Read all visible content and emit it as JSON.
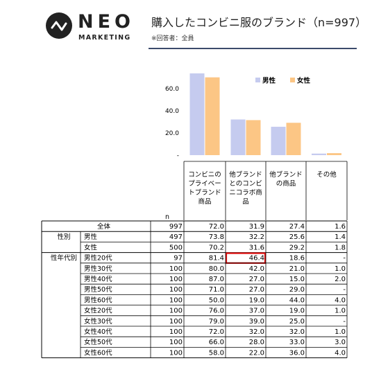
{
  "brand": {
    "name": "NEO",
    "sub": "MARKETING"
  },
  "header": {
    "title": "購入したコンビニ服のブランド（n=997）",
    "note": "※回答者：全員"
  },
  "chart_data": {
    "type": "bar",
    "title": "購入したコンビニ服のブランド（n=997）",
    "categories": [
      "コンビニのプライベートブランド商品",
      "他ブランドとのコンビニコラボ商品",
      "他ブランドの商品",
      "その他"
    ],
    "category_lines": [
      [
        "コンビニの",
        "プライベー",
        "トブランド",
        "商品"
      ],
      [
        "他ブランド",
        "とのコンビ",
        "ニコラボ商",
        "品"
      ],
      [
        "他ブランド",
        "の商品"
      ],
      [
        "その他"
      ]
    ],
    "series": [
      {
        "name": "男性",
        "values": [
          73.8,
          32.2,
          25.6,
          1.4
        ],
        "color": "#c5cbef"
      },
      {
        "name": "女性",
        "values": [
          70.2,
          31.6,
          29.2,
          1.8
        ],
        "color": "#fcc685"
      }
    ],
    "yticks": [
      "60.0",
      "40.0",
      "20.0",
      "-"
    ],
    "ylim": [
      0,
      80
    ],
    "legend_position": "top-right",
    "grid": false
  },
  "table": {
    "n_label": "n",
    "highlight_color": "#e01010",
    "groups": [
      {
        "label": "",
        "rows": [
          {
            "label": "全体",
            "n": "997",
            "values": [
              "72.0",
              "31.9",
              "27.4",
              "1.6"
            ]
          }
        ]
      },
      {
        "label": "性別",
        "rows": [
          {
            "label": "男性",
            "n": "497",
            "values": [
              "73.8",
              "32.2",
              "25.6",
              "1.4"
            ]
          },
          {
            "label": "女性",
            "n": "500",
            "values": [
              "70.2",
              "31.6",
              "29.2",
              "1.8"
            ]
          }
        ]
      },
      {
        "label": "性年代別",
        "rows": [
          {
            "label": "男性20代",
            "n": "97",
            "values": [
              "81.4",
              "46.4",
              "18.6",
              "-"
            ],
            "highlight": 1
          },
          {
            "label": "男性30代",
            "n": "100",
            "values": [
              "80.0",
              "42.0",
              "21.0",
              "1.0"
            ]
          },
          {
            "label": "男性40代",
            "n": "100",
            "values": [
              "87.0",
              "27.0",
              "15.0",
              "2.0"
            ]
          },
          {
            "label": "男性50代",
            "n": "100",
            "values": [
              "71.0",
              "27.0",
              "29.0",
              "-"
            ]
          },
          {
            "label": "男性60代",
            "n": "100",
            "values": [
              "50.0",
              "19.0",
              "44.0",
              "4.0"
            ]
          },
          {
            "label": "女性20代",
            "n": "100",
            "values": [
              "76.0",
              "37.0",
              "19.0",
              "1.0"
            ]
          },
          {
            "label": "女性30代",
            "n": "100",
            "values": [
              "79.0",
              "39.0",
              "25.0",
              "-"
            ]
          },
          {
            "label": "女性40代",
            "n": "100",
            "values": [
              "72.0",
              "32.0",
              "32.0",
              "1.0"
            ]
          },
          {
            "label": "女性50代",
            "n": "100",
            "values": [
              "66.0",
              "28.0",
              "33.0",
              "3.0"
            ]
          },
          {
            "label": "女性60代",
            "n": "100",
            "values": [
              "58.0",
              "22.0",
              "36.0",
              "4.0"
            ]
          }
        ]
      }
    ]
  }
}
